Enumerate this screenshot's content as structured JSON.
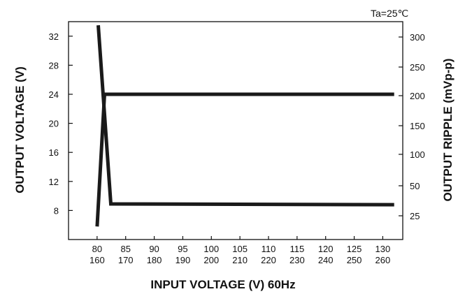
{
  "chart_data": {
    "type": "line",
    "condition_label": "Ta=25℃",
    "xlabel": "INPUT VOLTAGE (V) 60Hz",
    "ylabel_left": "OUTPUT VOLTAGE (V)",
    "ylabel_right": "OUTPUT RIPPLE (mVp-p)",
    "x_ticks_primary": [
      "80",
      "85",
      "90",
      "95",
      "100",
      "105",
      "110",
      "115",
      "120",
      "125",
      "130"
    ],
    "x_ticks_secondary": [
      "160",
      "170",
      "180",
      "190",
      "200",
      "210",
      "220",
      "230",
      "240",
      "250",
      "260"
    ],
    "y_ticks_left": [
      "8",
      "12",
      "16",
      "20",
      "24",
      "28",
      "32"
    ],
    "y_ticks_right": [
      "25",
      "50",
      "100",
      "150",
      "200",
      "250",
      "300"
    ],
    "xlim": [
      75,
      133.5
    ],
    "ylim_left": [
      4,
      34
    ],
    "series": [
      {
        "axis": "left",
        "x": [
          80.0,
          81.3,
          132.0
        ],
        "y": [
          5.8,
          24.0,
          24.0
        ]
      },
      {
        "axis": "left",
        "x": [
          80.2,
          82.4,
          132.0
        ],
        "y": [
          33.5,
          8.9,
          8.8
        ]
      }
    ],
    "grid": false,
    "legend": "none"
  }
}
